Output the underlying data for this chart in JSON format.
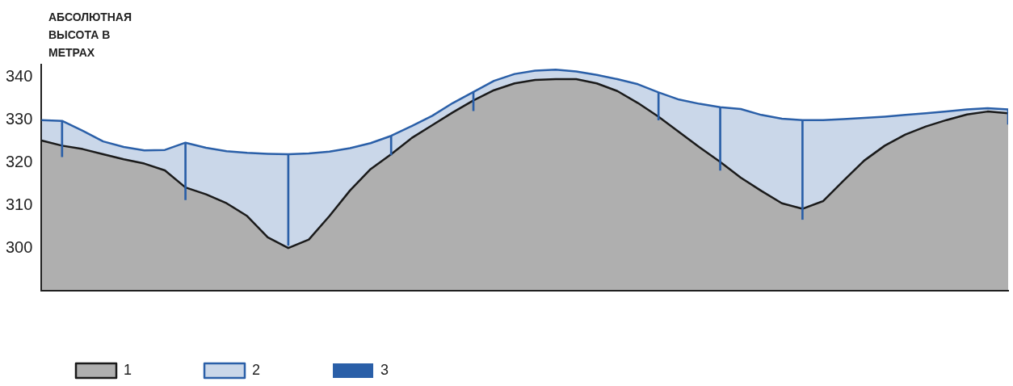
{
  "chart_data": {
    "type": "area",
    "ylabel": "АБСОЛЮТНАЯ ВЫСОТА В МЕТРАХ",
    "categories": [
      null,
      null,
      null,
      null,
      null,
      null,
      null,
      null,
      null,
      null,
      null,
      null,
      null,
      null,
      null,
      null,
      null,
      null,
      null,
      null,
      null,
      null,
      null,
      null,
      null,
      null,
      null,
      null,
      null,
      null,
      null,
      null,
      null,
      null,
      null,
      null,
      null,
      null,
      null,
      null,
      null,
      null,
      null,
      null,
      null,
      null,
      null,
      null
    ],
    "series": [
      {
        "name": "1",
        "color": "#1a1a1a",
        "values": [
          325.2,
          324.0,
          323.2,
          322.0,
          320.8,
          319.8,
          318.2,
          314.2,
          312.6,
          310.5,
          307.5,
          302.5,
          300.0,
          302.0,
          307.5,
          313.5,
          318.5,
          322.0,
          325.8,
          328.8,
          331.8,
          334.6,
          337.0,
          338.6,
          339.4,
          339.6,
          339.6,
          338.6,
          336.8,
          334.0,
          330.8,
          327.2,
          323.6,
          320.2,
          316.5,
          313.4,
          310.5,
          309.2,
          311.0,
          315.8,
          320.5,
          324.0,
          326.6,
          328.5,
          330.0,
          331.3,
          332.0,
          331.6
        ]
      },
      {
        "name": "2",
        "color": "#2a5fa8",
        "values": [
          330.0,
          329.8,
          327.5,
          325.0,
          323.7,
          322.9,
          323.0,
          324.7,
          323.5,
          322.7,
          322.3,
          322.1,
          322.0,
          322.2,
          322.6,
          323.4,
          324.6,
          326.3,
          328.6,
          331.0,
          334.0,
          336.6,
          339.2,
          340.8,
          341.6,
          341.8,
          341.4,
          340.6,
          339.6,
          338.4,
          336.5,
          334.8,
          333.8,
          333.0,
          332.6,
          331.2,
          330.3,
          330.0,
          330.0,
          330.2,
          330.5,
          330.8,
          331.2,
          331.6,
          332.0,
          332.5,
          332.8,
          332.5
        ]
      },
      {
        "name": "3",
        "type": "bar",
        "color": "#2a5fa8",
        "base": [
          null,
          321.4,
          null,
          null,
          null,
          null,
          null,
          311.3,
          null,
          null,
          null,
          null,
          300.6,
          null,
          null,
          null,
          null,
          321.8,
          null,
          null,
          null,
          332.2,
          null,
          null,
          null,
          null,
          null,
          null,
          null,
          null,
          330.0,
          null,
          null,
          318.2,
          null,
          null,
          null,
          306.7,
          null,
          null,
          null,
          null,
          null,
          null,
          null,
          null,
          null,
          329.0
        ],
        "values": [
          null,
          8.4,
          null,
          null,
          null,
          null,
          null,
          13.4,
          null,
          null,
          null,
          null,
          21.4,
          null,
          null,
          null,
          null,
          4.5,
          null,
          null,
          null,
          4.4,
          null,
          null,
          null,
          null,
          null,
          null,
          null,
          null,
          6.5,
          null,
          null,
          14.8,
          null,
          null,
          null,
          23.3,
          null,
          null,
          null,
          null,
          null,
          null,
          null,
          null,
          null,
          3.5
        ]
      }
    ],
    "ylim": [
      290,
      343
    ],
    "yticks": [
      300,
      310,
      320,
      330,
      340
    ],
    "tick_labels": "y",
    "grid": false,
    "legend": "bottom left",
    "marker": "none"
  }
}
